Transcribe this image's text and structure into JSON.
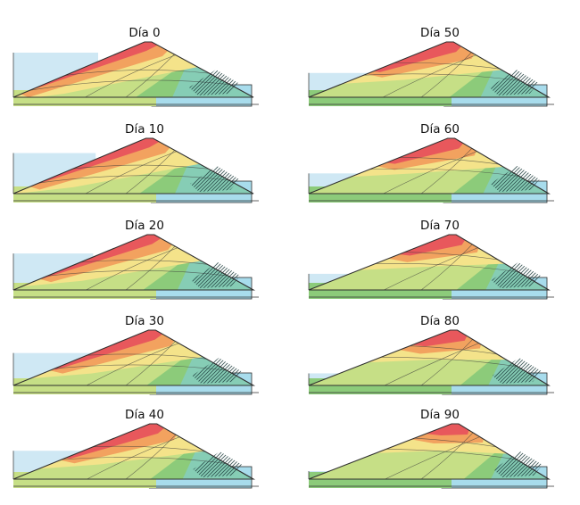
{
  "figure": {
    "panels": [
      {
        "label": "Día 0"
      },
      {
        "label": "Día 10"
      },
      {
        "label": "Día 20"
      },
      {
        "label": "Día 30"
      },
      {
        "label": "Día 40"
      },
      {
        "label": "Día 50"
      },
      {
        "label": "Día 60"
      },
      {
        "label": "Día 70"
      },
      {
        "label": "Día 80"
      },
      {
        "label": "Día 90"
      }
    ]
  },
  "colors": {
    "reservoir": "#cfe8f4",
    "foundation": "#a8dcec",
    "outline": "#2f2f2f",
    "red": "#e8585c",
    "orange": "#f2a25f",
    "yellow": "#f4e38a",
    "light_green": "#c6df86",
    "green": "#8ccb7a",
    "teal": "#86cdb5",
    "blue_teal": "#8fd1d8"
  },
  "icons": [
    "contour-zones",
    "hatched-toe-drain"
  ]
}
